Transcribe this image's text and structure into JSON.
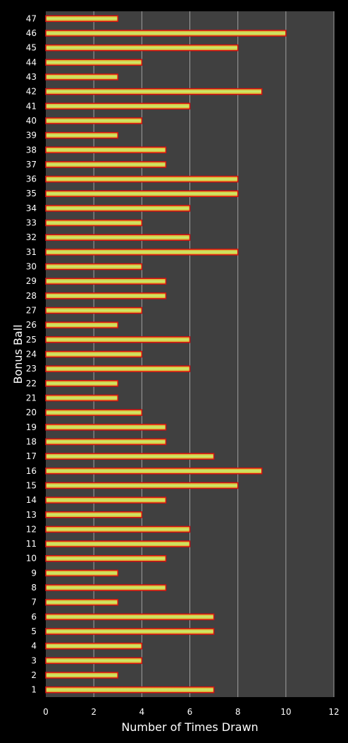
{
  "chart_data": {
    "type": "bar",
    "orientation": "horizontal",
    "xlabel": "Number of Times Drawn",
    "ylabel": "Bonus Ball",
    "xlim": [
      0,
      12
    ],
    "x_ticks": [
      0,
      2,
      4,
      6,
      8,
      10,
      12
    ],
    "grid": "vertical",
    "categories": [
      "1",
      "2",
      "3",
      "4",
      "5",
      "6",
      "7",
      "8",
      "9",
      "10",
      "11",
      "12",
      "13",
      "14",
      "15",
      "16",
      "17",
      "18",
      "19",
      "20",
      "21",
      "22",
      "23",
      "24",
      "25",
      "26",
      "27",
      "28",
      "29",
      "30",
      "31",
      "32",
      "33",
      "34",
      "35",
      "36",
      "37",
      "38",
      "39",
      "40",
      "41",
      "42",
      "43",
      "44",
      "45",
      "46",
      "47"
    ],
    "values": [
      7,
      3,
      4,
      4,
      7,
      7,
      3,
      5,
      3,
      5,
      6,
      6,
      4,
      5,
      8,
      9,
      7,
      5,
      5,
      4,
      3,
      3,
      6,
      4,
      6,
      3,
      4,
      5,
      5,
      4,
      8,
      6,
      4,
      6,
      8,
      8,
      5,
      5,
      3,
      4,
      6,
      9,
      3,
      4,
      8,
      10,
      3
    ],
    "colors": {
      "background": "#000000",
      "plot_area": "#404040",
      "gridline": "#a0a0a0",
      "bar_border": "#d81010",
      "bar_fill_edge": "#e8a020",
      "bar_fill_center": "#c8f070",
      "text": "#ffffff"
    }
  }
}
